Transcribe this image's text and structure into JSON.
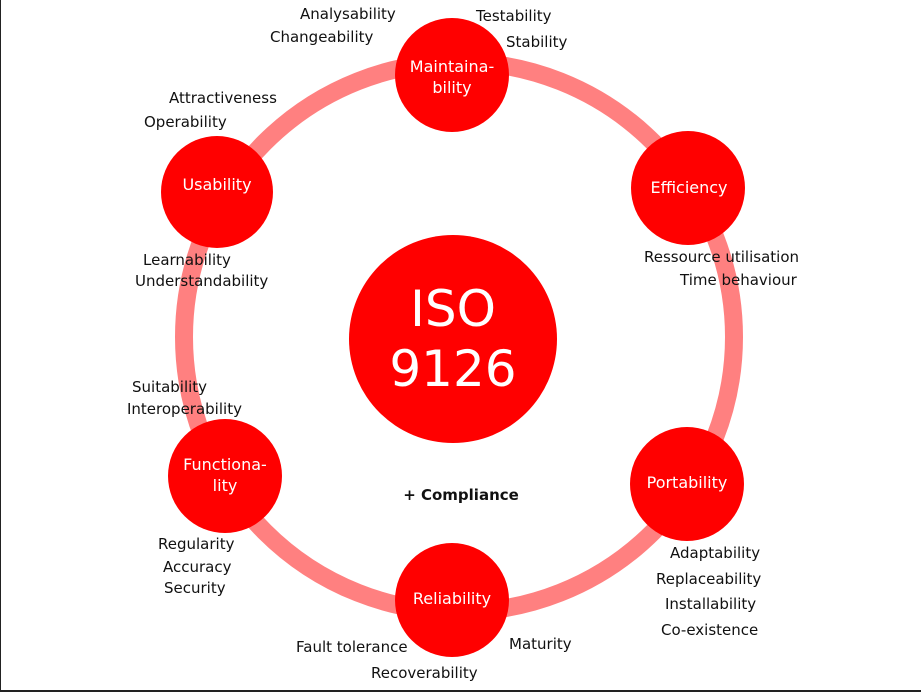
{
  "colors": {
    "ring": "#ff8080",
    "node": "#ff0000",
    "node_text": "#ffffff",
    "text": "#111111"
  },
  "center": {
    "line1": "ISO",
    "line2": "9126"
  },
  "compliance": "+ Compliance",
  "nodes": {
    "maintainability": {
      "line1": "Maintaina-",
      "line2": "bility"
    },
    "efficiency": {
      "line1": "Efficiency"
    },
    "portability": {
      "line1": "Portability"
    },
    "reliability": {
      "line1": "Reliability"
    },
    "functionality": {
      "line1": "Functiona-",
      "line2": "lity"
    },
    "usability": {
      "line1": "Usability"
    }
  },
  "attributes": {
    "maintainability": [
      "Analysability",
      "Changeability",
      "Testability",
      "Stability"
    ],
    "efficiency": [
      "Ressource utilisation",
      "Time behaviour"
    ],
    "portability": [
      "Adaptability",
      "Replaceability",
      "Installability",
      "Co-existence"
    ],
    "reliability": [
      "Fault tolerance",
      "Recoverability",
      "Maturity"
    ],
    "functionality": [
      "Suitability",
      "Interoperability",
      "Regularity",
      "Accuracy",
      "Security"
    ],
    "usability": [
      "Attractiveness",
      "Operability",
      "Learnability",
      "Understandability"
    ]
  }
}
